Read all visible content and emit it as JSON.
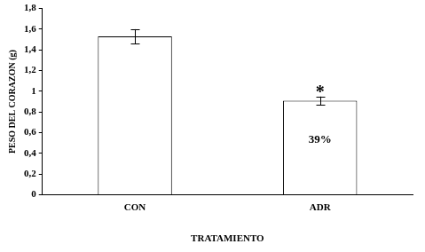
{
  "chart_data": {
    "type": "bar",
    "categories": [
      "CON",
      "ADR"
    ],
    "values": [
      1.53,
      0.91
    ],
    "errors": [
      0.07,
      0.04
    ],
    "color": "#ffffff",
    "x_label": "TRATAMIENTO",
    "y_label": "PESO DEL CORAZON (g)",
    "ylim": [
      0,
      1.8
    ],
    "yticks": [
      0,
      {
        "value": 0.2,
        "label": "0,2"
      },
      {
        "value": 0.4,
        "label": "0,4"
      },
      {
        "value": 0.6,
        "label": "0,6"
      },
      {
        "value": 0.8,
        "label": "0,8"
      },
      1,
      {
        "value": 1.2,
        "label": "1,2"
      },
      {
        "value": 1.4,
        "label": "1,4"
      },
      {
        "value": 1.6,
        "label": "1,6"
      },
      {
        "value": 1.8,
        "label": "1,8"
      }
    ],
    "grid": false,
    "annotations": [
      {
        "category": "ADR",
        "text": "*"
      },
      {
        "category": "ADR",
        "text": "39%"
      }
    ]
  }
}
